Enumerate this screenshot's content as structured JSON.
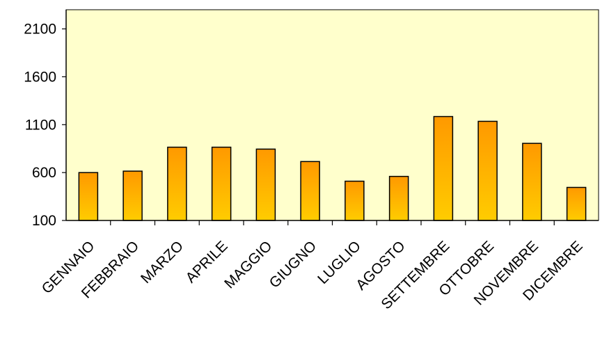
{
  "chart_data": {
    "type": "bar",
    "title": "",
    "xlabel": "",
    "ylabel": "",
    "categories": [
      "GENNAIO",
      "FEBBRAIO",
      "MARZO",
      "APRILE",
      "MAGGIO",
      "GIUGNO",
      "LUGLIO",
      "AGOSTO",
      "SETTEMBRE",
      "OTTOBRE",
      "NOVEMBRE",
      "DICEMBRE"
    ],
    "values": [
      600,
      615,
      865,
      865,
      845,
      715,
      510,
      560,
      1185,
      1135,
      905,
      445
    ],
    "ylim": [
      100,
      2300
    ],
    "yticks": [
      100,
      600,
      1100,
      1600,
      2100
    ],
    "ytick_labels": [
      "100",
      "600",
      "1100",
      "1600",
      "2100"
    ],
    "grid": false,
    "legend": "none",
    "colors": {
      "plot_background": "#FFFFCC",
      "bar_top": "#FF9900",
      "bar_bottom": "#FFCC00",
      "bar_outline": "#000000",
      "axis": "#000000"
    }
  }
}
